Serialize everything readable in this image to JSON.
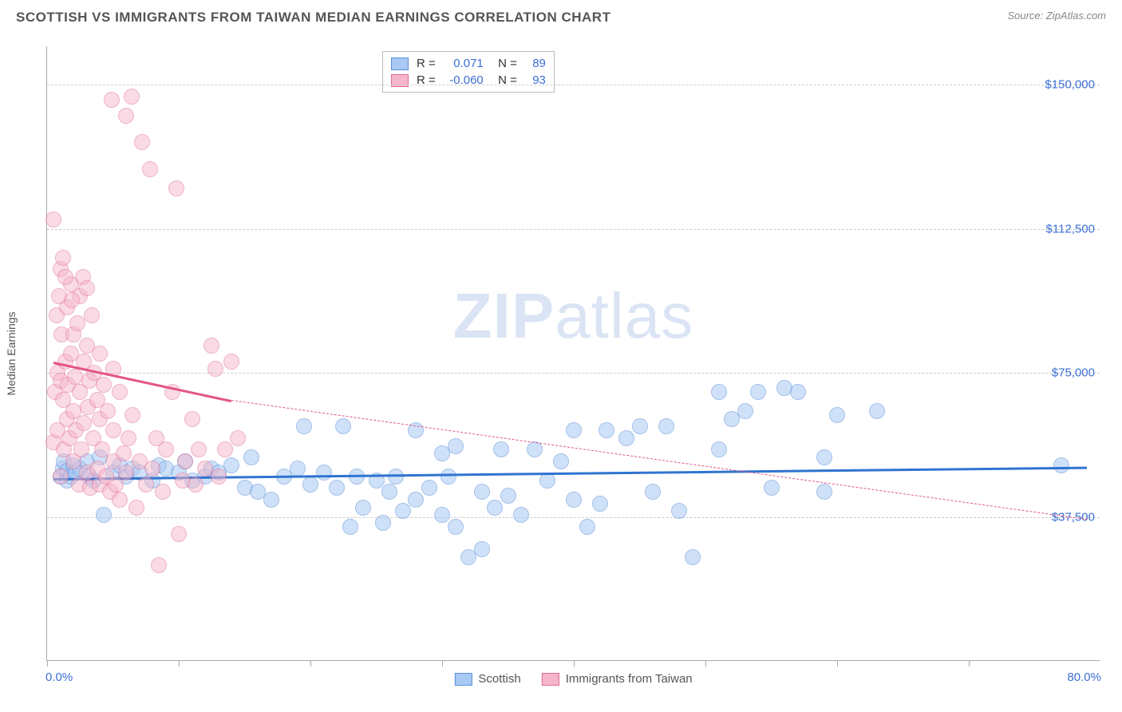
{
  "title": "SCOTTISH VS IMMIGRANTS FROM TAIWAN MEDIAN EARNINGS CORRELATION CHART",
  "source": "Source: ZipAtlas.com",
  "y_axis_label": "Median Earnings",
  "watermark_a": "ZIP",
  "watermark_b": "atlas",
  "chart": {
    "type": "scatter",
    "background_color": "#ffffff",
    "grid_color": "#cccccc",
    "axis_color": "#aaaaaa",
    "xlim": [
      0,
      80
    ],
    "ylim": [
      0,
      160000
    ],
    "x_label_min": "0.0%",
    "x_label_max": "80.0%",
    "x_ticks": [
      0,
      10,
      20,
      30,
      40,
      50,
      60,
      70
    ],
    "y_ticks": [
      {
        "v": 37500,
        "label": "$37,500"
      },
      {
        "v": 75000,
        "label": "$75,000"
      },
      {
        "v": 112500,
        "label": "$112,500"
      },
      {
        "v": 150000,
        "label": "$150,000"
      }
    ],
    "marker_radius": 10,
    "marker_stroke_width": 1.5,
    "series": [
      {
        "name": "Scottish",
        "fill": "#a9c9f3",
        "stroke": "#5a90d8",
        "fill_opacity": 0.55,
        "R": "0.071",
        "N": "89",
        "trend": {
          "x1": 0.5,
          "y1": 47500,
          "x2": 79,
          "y2": 50500,
          "color": "#2f74d0"
        },
        "points": [
          [
            1,
            48000
          ],
          [
            1.2,
            50000
          ],
          [
            1.3,
            52000
          ],
          [
            1.5,
            47000
          ],
          [
            1.5,
            49500
          ],
          [
            1.8,
            48000
          ],
          [
            2,
            51000
          ],
          [
            2.2,
            49000
          ],
          [
            2.5,
            50000
          ],
          [
            3,
            52000
          ],
          [
            3.2,
            48000
          ],
          [
            3.5,
            47000
          ],
          [
            4,
            53000
          ],
          [
            4.3,
            38000
          ],
          [
            5,
            49000
          ],
          [
            5.5,
            51000
          ],
          [
            6,
            48000
          ],
          [
            6.5,
            50000
          ],
          [
            7,
            49000
          ],
          [
            8,
            47000
          ],
          [
            8.5,
            51000
          ],
          [
            9,
            50000
          ],
          [
            10,
            49000
          ],
          [
            10.5,
            52000
          ],
          [
            11,
            47000
          ],
          [
            12,
            48000
          ],
          [
            12.5,
            50000
          ],
          [
            13,
            49000
          ],
          [
            14,
            51000
          ],
          [
            15,
            45000
          ],
          [
            15.5,
            53000
          ],
          [
            16,
            44000
          ],
          [
            17,
            42000
          ],
          [
            18,
            48000
          ],
          [
            19,
            50000
          ],
          [
            19.5,
            61000
          ],
          [
            20,
            46000
          ],
          [
            21,
            49000
          ],
          [
            22,
            45000
          ],
          [
            22.5,
            61000
          ],
          [
            23,
            35000
          ],
          [
            23.5,
            48000
          ],
          [
            24,
            40000
          ],
          [
            25,
            47000
          ],
          [
            25.5,
            36000
          ],
          [
            26,
            44000
          ],
          [
            26.5,
            48000
          ],
          [
            27,
            39000
          ],
          [
            28,
            42000
          ],
          [
            28,
            60000
          ],
          [
            29,
            45000
          ],
          [
            30,
            38000
          ],
          [
            30,
            54000
          ],
          [
            30.5,
            48000
          ],
          [
            31,
            35000
          ],
          [
            31,
            56000
          ],
          [
            32,
            27000
          ],
          [
            33,
            29000
          ],
          [
            33,
            44000
          ],
          [
            34,
            40000
          ],
          [
            34.5,
            55000
          ],
          [
            35,
            43000
          ],
          [
            36,
            38000
          ],
          [
            37,
            55000
          ],
          [
            38,
            47000
          ],
          [
            39,
            52000
          ],
          [
            40,
            42000
          ],
          [
            40,
            60000
          ],
          [
            41,
            35000
          ],
          [
            42,
            41000
          ],
          [
            42.5,
            60000
          ],
          [
            44,
            58000
          ],
          [
            45,
            61000
          ],
          [
            46,
            44000
          ],
          [
            47,
            61000
          ],
          [
            48,
            39000
          ],
          [
            49,
            27000
          ],
          [
            51,
            55000
          ],
          [
            51,
            70000
          ],
          [
            52,
            63000
          ],
          [
            53,
            65000
          ],
          [
            54,
            70000
          ],
          [
            56,
            71000
          ],
          [
            55,
            45000
          ],
          [
            57,
            70000
          ],
          [
            59,
            53000
          ],
          [
            60,
            64000
          ],
          [
            59,
            44000
          ],
          [
            63,
            65000
          ],
          [
            77,
            51000
          ]
        ]
      },
      {
        "name": "Immigrants from Taiwan",
        "fill": "#f6b6ca",
        "stroke": "#e06a93",
        "fill_opacity": 0.5,
        "R": "-0.060",
        "N": "93",
        "trend": {
          "x1": 0.5,
          "y1": 78000,
          "x2": 14,
          "y2": 68000,
          "color": "#e3558a"
        },
        "trend_dash": {
          "x1": 14,
          "y1": 68000,
          "x2": 79,
          "y2": 37000,
          "color": "#e3558a"
        },
        "points": [
          [
            0.5,
            115000
          ],
          [
            0.5,
            57000
          ],
          [
            0.6,
            70000
          ],
          [
            0.7,
            90000
          ],
          [
            0.8,
            60000
          ],
          [
            0.8,
            75000
          ],
          [
            1,
            102000
          ],
          [
            1,
            73000
          ],
          [
            1,
            48000
          ],
          [
            1.1,
            85000
          ],
          [
            1.2,
            68000
          ],
          [
            1.2,
            105000
          ],
          [
            1.3,
            55000
          ],
          [
            1.4,
            78000
          ],
          [
            1.5,
            92000
          ],
          [
            1.5,
            63000
          ],
          [
            1.6,
            72000
          ],
          [
            1.7,
            58000
          ],
          [
            1.8,
            80000
          ],
          [
            1.8,
            98000
          ],
          [
            2,
            65000
          ],
          [
            2,
            52000
          ],
          [
            2,
            85000
          ],
          [
            2.1,
            74000
          ],
          [
            2.2,
            60000
          ],
          [
            2.3,
            88000
          ],
          [
            2.4,
            46000
          ],
          [
            2.5,
            70000
          ],
          [
            2.5,
            95000
          ],
          [
            2.6,
            55000
          ],
          [
            2.8,
            78000
          ],
          [
            2.8,
            62000
          ],
          [
            3,
            82000
          ],
          [
            3,
            49000
          ],
          [
            3.1,
            66000
          ],
          [
            3.2,
            73000
          ],
          [
            3.3,
            45000
          ],
          [
            3.4,
            90000
          ],
          [
            3.5,
            58000
          ],
          [
            3.6,
            75000
          ],
          [
            3.8,
            50000
          ],
          [
            3.8,
            68000
          ],
          [
            4,
            63000
          ],
          [
            4,
            46000
          ],
          [
            4,
            80000
          ],
          [
            4.2,
            55000
          ],
          [
            4.3,
            72000
          ],
          [
            4.5,
            48000
          ],
          [
            4.6,
            65000
          ],
          [
            4.8,
            44000
          ],
          [
            5,
            76000
          ],
          [
            5,
            52000
          ],
          [
            5,
            60000
          ],
          [
            5.2,
            46000
          ],
          [
            5.5,
            70000
          ],
          [
            5.5,
            42000
          ],
          [
            5.8,
            54000
          ],
          [
            6,
            49000
          ],
          [
            6,
            142000
          ],
          [
            6.4,
            147000
          ],
          [
            4.9,
            146000
          ],
          [
            6.2,
            58000
          ],
          [
            6.5,
            64000
          ],
          [
            6.8,
            40000
          ],
          [
            7,
            52000
          ],
          [
            7.2,
            135000
          ],
          [
            7.5,
            46000
          ],
          [
            7.8,
            128000
          ],
          [
            8,
            50000
          ],
          [
            8.3,
            58000
          ],
          [
            8.5,
            25000
          ],
          [
            8.8,
            44000
          ],
          [
            9,
            55000
          ],
          [
            9.5,
            70000
          ],
          [
            9.8,
            123000
          ],
          [
            10,
            33000
          ],
          [
            10.3,
            47000
          ],
          [
            10.5,
            52000
          ],
          [
            11,
            63000
          ],
          [
            11.3,
            46000
          ],
          [
            11.5,
            55000
          ],
          [
            12,
            50000
          ],
          [
            12.5,
            82000
          ],
          [
            12.8,
            76000
          ],
          [
            13,
            48000
          ],
          [
            13.5,
            55000
          ],
          [
            14,
            78000
          ],
          [
            14.5,
            58000
          ],
          [
            2.7,
            100000
          ],
          [
            3,
            97000
          ],
          [
            1.9,
            94000
          ],
          [
            1.4,
            100000
          ],
          [
            0.9,
            95000
          ]
        ]
      }
    ]
  },
  "legend": {
    "series_a": "Scottish",
    "series_b": "Immigrants from Taiwan"
  }
}
